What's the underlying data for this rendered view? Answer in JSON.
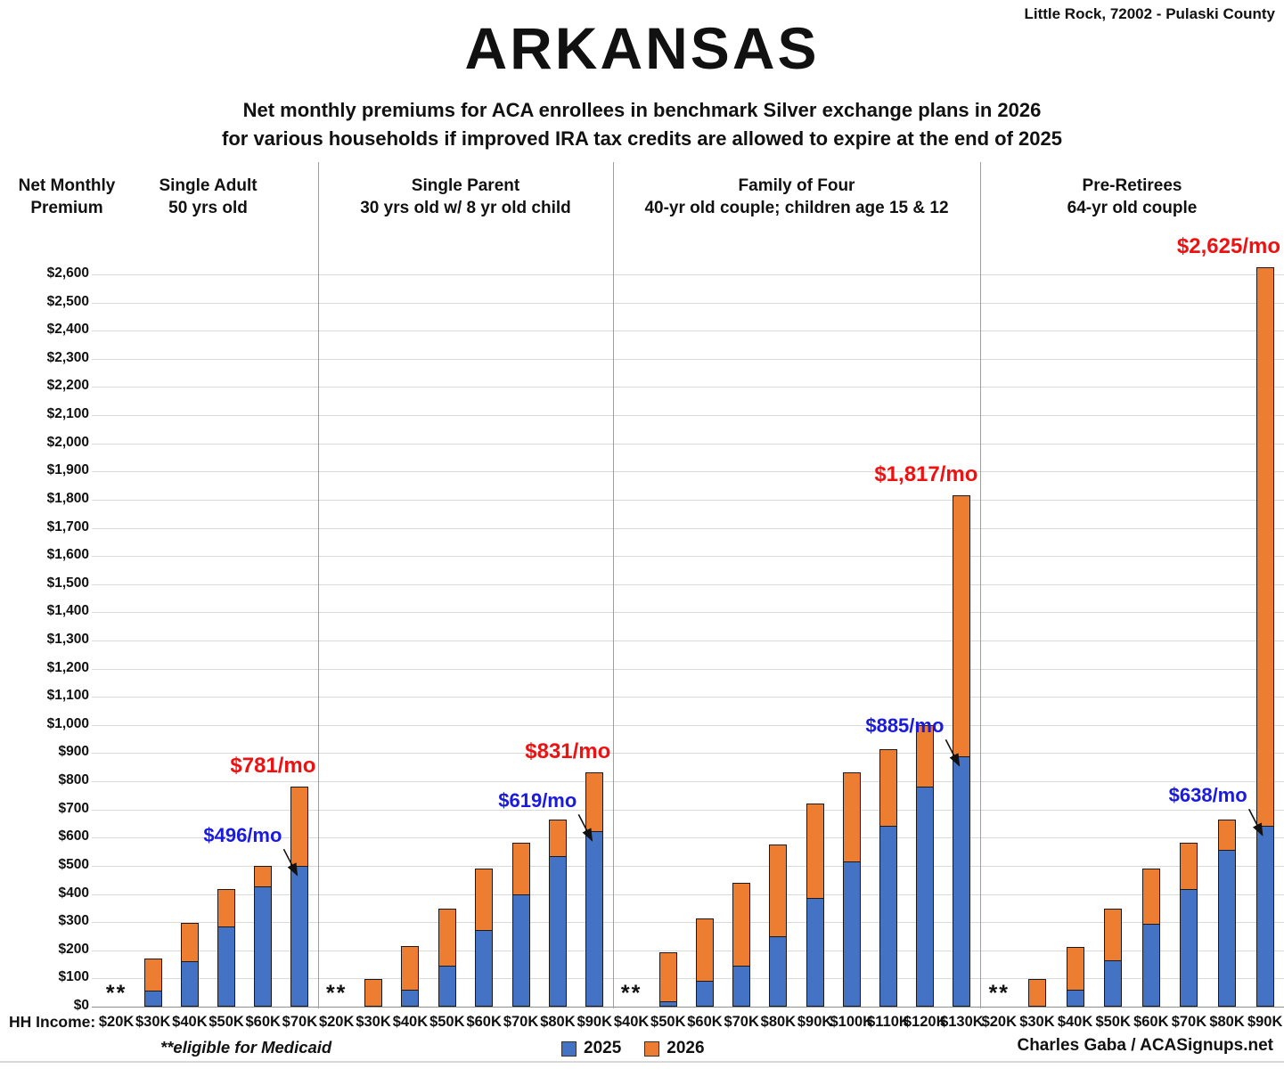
{
  "header": {
    "location": "Little Rock, 72002 - Pulaski County",
    "title": "ARKANSAS",
    "subtitle_line1": "Net monthly premiums for ACA enrollees in benchmark Silver exchange plans in 2026",
    "subtitle_line2": "for various households if improved IRA tax credits are allowed to expire at the end of 2025"
  },
  "axis": {
    "y_title_line1": "Net Monthly",
    "y_title_line2": "Premium",
    "x_title": "HH Income:"
  },
  "footer": {
    "medicaid_note": "**eligible for Medicaid",
    "attribution": "Charles Gaba / ACASignups.net"
  },
  "legend": [
    {
      "label": "2025",
      "color": "#4472c4"
    },
    {
      "label": "2026",
      "color": "#ed7d31"
    }
  ],
  "colors": {
    "bar_2025": "#4472c4",
    "bar_2026": "#ed7d31",
    "annotation_2026": "#ee1111",
    "annotation_2025": "#1a1ae0",
    "gridline": "#d9d9d9",
    "axis_line": "#8f8f8f",
    "divider": "#9e9e9e",
    "arrow": "#111111"
  },
  "chart_data": {
    "type": "bar",
    "title": "ARKANSAS",
    "ylabel": "Net Monthly Premium",
    "xlabel": "HH Income",
    "ylim": [
      0,
      2600
    ],
    "ytick_step": 100,
    "y_ticks": [
      "$0",
      "$100",
      "$200",
      "$300",
      "$400",
      "$500",
      "$600",
      "$700",
      "$800",
      "$900",
      "$1,000",
      "$1,100",
      "$1,200",
      "$1,300",
      "$1,400",
      "$1,500",
      "$1,600",
      "$1,700",
      "$1,800",
      "$1,900",
      "$2,000",
      "$2,100",
      "$2,200",
      "$2,300",
      "$2,400",
      "$2,500",
      "$2,600"
    ],
    "grid": true,
    "legend_position": "bottom",
    "series_names": [
      "2025",
      "2026"
    ],
    "bar_meaning": "blue bar = 2025 net premium; full bar top (orange cap) = 2026 net premium",
    "medicaid_marker": "**",
    "groups": [
      {
        "label_line1": "Single Adult",
        "label_line2": "50 yrs old",
        "annotation_2026": "$781/mo",
        "annotation_2025": "$496/mo",
        "bars": [
          {
            "income": "$20K",
            "medicaid": true
          },
          {
            "income": "$30K",
            "premium_2025": 55,
            "premium_2026": 170
          },
          {
            "income": "$40K",
            "premium_2025": 158,
            "premium_2026": 298
          },
          {
            "income": "$50K",
            "premium_2025": 282,
            "premium_2026": 418
          },
          {
            "income": "$60K",
            "premium_2025": 424,
            "premium_2026": 499
          },
          {
            "income": "$70K",
            "premium_2025": 496,
            "premium_2026": 781
          }
        ]
      },
      {
        "label_line1": "Single Parent",
        "label_line2": "30 yrs old w/ 8 yr old child",
        "annotation_2026": "$831/mo",
        "annotation_2025": "$619/mo",
        "bars": [
          {
            "income": "$20K",
            "medicaid": true
          },
          {
            "income": "$30K",
            "premium_2025": 0,
            "premium_2026": 98
          },
          {
            "income": "$40K",
            "premium_2025": 58,
            "premium_2026": 214
          },
          {
            "income": "$50K",
            "premium_2025": 142,
            "premium_2026": 347
          },
          {
            "income": "$60K",
            "premium_2025": 270,
            "premium_2026": 490
          },
          {
            "income": "$70K",
            "premium_2025": 396,
            "premium_2026": 582
          },
          {
            "income": "$80K",
            "premium_2025": 533,
            "premium_2026": 663
          },
          {
            "income": "$90K",
            "premium_2025": 619,
            "premium_2026": 831
          }
        ]
      },
      {
        "label_line1": "Family of Four",
        "label_line2": "40-yr old couple; children age 15 & 12",
        "annotation_2026": "$1,817/mo",
        "annotation_2025": "$885/mo",
        "bars": [
          {
            "income": "$40K",
            "medicaid": true
          },
          {
            "income": "$50K",
            "premium_2025": 16,
            "premium_2026": 192
          },
          {
            "income": "$60K",
            "premium_2025": 88,
            "premium_2026": 312
          },
          {
            "income": "$70K",
            "premium_2025": 142,
            "premium_2026": 441
          },
          {
            "income": "$80K",
            "premium_2025": 247,
            "premium_2026": 577
          },
          {
            "income": "$90K",
            "premium_2025": 383,
            "premium_2026": 722
          },
          {
            "income": "$100K",
            "premium_2025": 512,
            "premium_2026": 831
          },
          {
            "income": "$110K",
            "premium_2025": 640,
            "premium_2026": 913
          },
          {
            "income": "$120K",
            "premium_2025": 777,
            "premium_2026": 999
          },
          {
            "income": "$130K",
            "premium_2025": 885,
            "premium_2026": 1817
          }
        ]
      },
      {
        "label_line1": "Pre-Retirees",
        "label_line2": "64-yr old couple",
        "annotation_2026": "$2,625/mo",
        "annotation_2025": "$638/mo",
        "bars": [
          {
            "income": "$20K",
            "medicaid": true
          },
          {
            "income": "$30K",
            "premium_2025": 0,
            "premium_2026": 98
          },
          {
            "income": "$40K",
            "premium_2025": 58,
            "premium_2026": 213
          },
          {
            "income": "$50K",
            "premium_2025": 160,
            "premium_2026": 347
          },
          {
            "income": "$60K",
            "premium_2025": 290,
            "premium_2026": 490
          },
          {
            "income": "$70K",
            "premium_2025": 413,
            "premium_2026": 582
          },
          {
            "income": "$80K",
            "premium_2025": 555,
            "premium_2026": 665
          },
          {
            "income": "$90K",
            "premium_2025": 638,
            "premium_2026": 2625
          }
        ]
      }
    ]
  }
}
